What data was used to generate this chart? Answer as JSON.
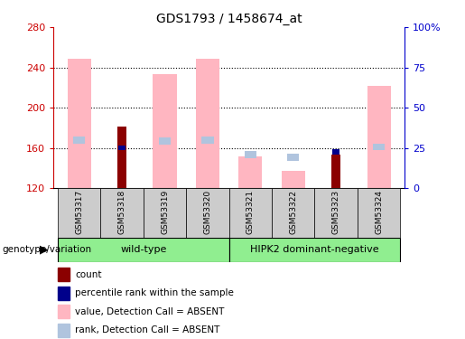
{
  "title": "GDS1793 / 1458674_at",
  "samples": [
    "GSM53317",
    "GSM53318",
    "GSM53319",
    "GSM53320",
    "GSM53321",
    "GSM53322",
    "GSM53323",
    "GSM53324"
  ],
  "ylim_left": [
    120,
    280
  ],
  "ylim_right": [
    0,
    100
  ],
  "yticks_left": [
    120,
    160,
    200,
    240,
    280
  ],
  "yticks_right": [
    0,
    25,
    50,
    75,
    100
  ],
  "yticklabels_right": [
    "0",
    "25",
    "50",
    "75",
    "100%"
  ],
  "value_absent": [
    249,
    0,
    233,
    249,
    152,
    137,
    0,
    222
  ],
  "rank_absent": [
    168,
    0,
    167,
    168,
    153,
    151,
    0,
    161
  ],
  "count_value": [
    0,
    181,
    0,
    0,
    0,
    0,
    153,
    0
  ],
  "percentile_value": [
    0,
    160,
    0,
    0,
    0,
    0,
    156,
    0
  ],
  "color_value_absent": "#FFB6C1",
  "color_rank_absent": "#B0C4DE",
  "color_count": "#8B0000",
  "color_percentile": "#00008B",
  "bar_bottom": 120,
  "grid_yticks": [
    160,
    200,
    240
  ],
  "left_axis_color": "#CC0000",
  "right_axis_color": "#0000CC",
  "group1_label": "wild-type",
  "group2_label": "HIPK2 dominant-negative",
  "group_color": "#90EE90",
  "label_area_color": "#CCCCCC",
  "genotype_label": "genotype/variation",
  "legend_items": [
    [
      "#8B0000",
      "count"
    ],
    [
      "#00008B",
      "percentile rank within the sample"
    ],
    [
      "#FFB6C1",
      "value, Detection Call = ABSENT"
    ],
    [
      "#B0C4DE",
      "rank, Detection Call = ABSENT"
    ]
  ]
}
